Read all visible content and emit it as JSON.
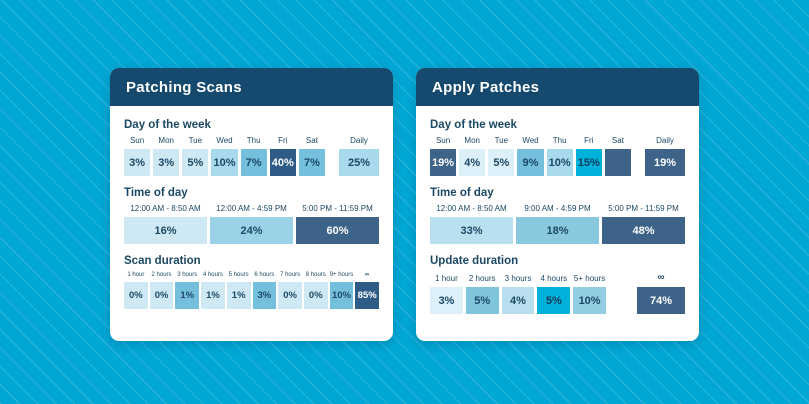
{
  "chart_data": [
    {
      "type": "heatmap",
      "title": "Patching Scans",
      "unit": "%",
      "groups": [
        {
          "label": "Day of the week",
          "categories": [
            "Sun",
            "Mon",
            "Tue",
            "Wed",
            "Thu",
            "Fri",
            "Sat",
            "Daily"
          ],
          "values": [
            3,
            3,
            5,
            10,
            7,
            40,
            7,
            25
          ]
        },
        {
          "label": "Time of day",
          "categories": [
            "12:00 AM - 8:50 AM",
            "12:00 AM - 4:59 PM",
            "5:00 PM - 11:59 PM"
          ],
          "values": [
            16,
            24,
            60
          ]
        },
        {
          "label": "Scan duration",
          "categories": [
            "1 hour",
            "2 hours",
            "3 hours",
            "4 hours",
            "5 hours",
            "6 hours",
            "7 hours",
            "8 hours",
            "9+ hours",
            "∞"
          ],
          "values": [
            0,
            0,
            1,
            1,
            1,
            3,
            0,
            0,
            10,
            85
          ]
        }
      ]
    },
    {
      "type": "heatmap",
      "title": "Apply Patches",
      "unit": "%",
      "groups": [
        {
          "label": "Day of the week",
          "categories": [
            "Sun",
            "Mon",
            "Tue",
            "Wed",
            "Thu",
            "Fri",
            "Sat",
            "Daily"
          ],
          "values": [
            19,
            4,
            5,
            9,
            10,
            15,
            null,
            19
          ]
        },
        {
          "label": "Time of day",
          "categories": [
            "12:00 AM - 8:50 AM",
            "9:00 AM - 4:59 PM",
            "5:00 PM - 11:59 PM"
          ],
          "values": [
            33,
            18,
            48
          ]
        },
        {
          "label": "Update duration",
          "categories": [
            "1 hour",
            "2 hours",
            "3 hours",
            "4 hours",
            "5+ hours",
            "∞"
          ],
          "values": [
            3,
            5,
            4,
            5,
            10,
            74
          ]
        }
      ]
    }
  ],
  "colors": {
    "background": "#00a6d4",
    "header_navy": "#15496d",
    "text_navy": "#1b4965",
    "dark_slate": "#3d6388",
    "dark_navy": "#2e5c87",
    "medium_blue": "#74c0dc",
    "medium_light": "#a9d9ec",
    "light_blue": "#cfe9f4",
    "very_light": "#ddeff8",
    "bright_cyan": "#00b1d9"
  },
  "cards": [
    {
      "title": "Patching Scans",
      "day": {
        "heading": "Day of the week",
        "cols": [
          {
            "l": "Sun",
            "v": "3%",
            "bg": "#cfe9f4",
            "fg": "#1b4965"
          },
          {
            "l": "Mon",
            "v": "3%",
            "bg": "#cfe9f4",
            "fg": "#1b4965"
          },
          {
            "l": "Tue",
            "v": "5%",
            "bg": "#cfe9f4",
            "fg": "#1b4965"
          },
          {
            "l": "Wed",
            "v": "10%",
            "bg": "#a9d9ec",
            "fg": "#1b4965"
          },
          {
            "l": "Thu",
            "v": "7%",
            "bg": "#74c0dc",
            "fg": "#1b4965"
          },
          {
            "l": "Fri",
            "v": "40%",
            "bg": "#2e5c87",
            "fg": "#ffffff"
          },
          {
            "l": "Sat",
            "v": "7%",
            "bg": "#74c0dc",
            "fg": "#1b4965"
          }
        ],
        "daily": {
          "l": "Daily",
          "v": "25%",
          "bg": "#a9d9ec",
          "fg": "#1b4965"
        }
      },
      "time": {
        "heading": "Time of day",
        "cols": [
          {
            "l": "12:00 AM - 8:50 AM",
            "v": "16%",
            "bg": "#cfe9f4",
            "fg": "#1b4965"
          },
          {
            "l": "12:00 AM - 4:59 PM",
            "v": "24%",
            "bg": "#9bd2e7",
            "fg": "#1b4965"
          },
          {
            "l": "5:00 PM - 11:59 PM",
            "v": "60%",
            "bg": "#3d6388",
            "fg": "#ffffff"
          }
        ]
      },
      "dur": {
        "heading": "Scan duration",
        "cols": [
          {
            "l": "1 hour",
            "v": "0%",
            "bg": "#cfe9f4",
            "fg": "#1b4965"
          },
          {
            "l": "2 hours",
            "v": "0%",
            "bg": "#cfe9f4",
            "fg": "#1b4965"
          },
          {
            "l": "3 hours",
            "v": "1%",
            "bg": "#74c0dc",
            "fg": "#1b4965"
          },
          {
            "l": "4 hours",
            "v": "1%",
            "bg": "#cfe9f4",
            "fg": "#1b4965"
          },
          {
            "l": "5 hours",
            "v": "1%",
            "bg": "#cfe9f4",
            "fg": "#1b4965"
          },
          {
            "l": "6 hours",
            "v": "3%",
            "bg": "#74c0dc",
            "fg": "#1b4965"
          },
          {
            "l": "7 hours",
            "v": "0%",
            "bg": "#cfe9f4",
            "fg": "#1b4965"
          },
          {
            "l": "8 hours",
            "v": "0%",
            "bg": "#cfe9f4",
            "fg": "#1b4965"
          },
          {
            "l": "9+ hours",
            "v": "10%",
            "bg": "#74c0dc",
            "fg": "#1b4965"
          },
          {
            "l": "∞",
            "v": "85%",
            "bg": "#2e5c87",
            "fg": "#ffffff"
          }
        ]
      }
    },
    {
      "title": "Apply Patches",
      "day": {
        "heading": "Day of the week",
        "cols": [
          {
            "l": "Sun",
            "v": "19%",
            "bg": "#3d6388",
            "fg": "#ffffff"
          },
          {
            "l": "Mon",
            "v": "4%",
            "bg": "#ddeff8",
            "fg": "#1b4965"
          },
          {
            "l": "Tue",
            "v": "5%",
            "bg": "#ddeff8",
            "fg": "#1b4965"
          },
          {
            "l": "Wed",
            "v": "9%",
            "bg": "#74c0dc",
            "fg": "#1b4965"
          },
          {
            "l": "Thu",
            "v": "10%",
            "bg": "#a9d9ec",
            "fg": "#1b4965"
          },
          {
            "l": "Fri",
            "v": "15%",
            "bg": "#00b1d9",
            "fg": "#0e3a5c"
          },
          {
            "l": "Sat",
            "v": "",
            "bg": "#3d6388",
            "fg": "#ffffff"
          }
        ],
        "daily": {
          "l": "Daily",
          "v": "19%",
          "bg": "#3d6388",
          "fg": "#ffffff"
        }
      },
      "time": {
        "heading": "Time of day",
        "cols": [
          {
            "l": "12:00 AM - 8:50 AM",
            "v": "33%",
            "bg": "#b9e0ef",
            "fg": "#1b4965"
          },
          {
            "l": "9:00 AM - 4:59 PM",
            "v": "18%",
            "bg": "#8ac8df",
            "fg": "#1b4965"
          },
          {
            "l": "5:00 PM - 11:59 PM",
            "v": "48%",
            "bg": "#3d6388",
            "fg": "#ffffff"
          }
        ]
      },
      "dur": {
        "heading": "Update duration",
        "cols": [
          {
            "l": "1 hour",
            "v": "3%",
            "bg": "#ddeff8",
            "fg": "#1b4965"
          },
          {
            "l": "2 hours",
            "v": "5%",
            "bg": "#7fc3dc",
            "fg": "#1b4965"
          },
          {
            "l": "3 hours",
            "v": "4%",
            "bg": "#b9dfee",
            "fg": "#1b4965"
          },
          {
            "l": "4 hours",
            "v": "5%",
            "bg": "#00b1d9",
            "fg": "#0e3a5c"
          },
          {
            "l": "5+ hours",
            "v": "10%",
            "bg": "#93cde2",
            "fg": "#1b4965"
          }
        ],
        "inf": {
          "l": "∞",
          "v": "74%",
          "bg": "#3d6388",
          "fg": "#ffffff"
        }
      }
    }
  ]
}
